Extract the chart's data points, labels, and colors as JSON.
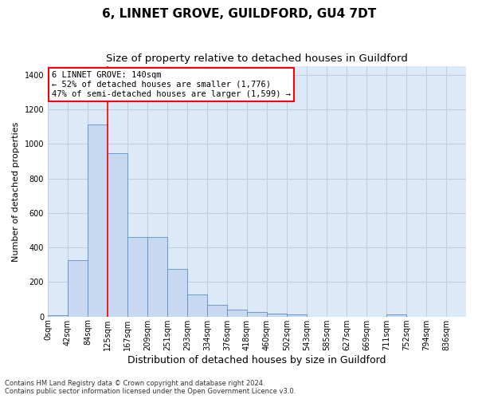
{
  "title": "6, LINNET GROVE, GUILDFORD, GU4 7DT",
  "subtitle": "Size of property relative to detached houses in Guildford",
  "xlabel": "Distribution of detached houses by size in Guildford",
  "ylabel": "Number of detached properties",
  "categories": [
    "0sqm",
    "42sqm",
    "84sqm",
    "125sqm",
    "167sqm",
    "209sqm",
    "251sqm",
    "293sqm",
    "334sqm",
    "376sqm",
    "418sqm",
    "460sqm",
    "502sqm",
    "543sqm",
    "585sqm",
    "627sqm",
    "669sqm",
    "711sqm",
    "752sqm",
    "794sqm",
    "836sqm"
  ],
  "bar_heights": [
    10,
    328,
    1112,
    948,
    460,
    460,
    275,
    130,
    68,
    38,
    25,
    18,
    14,
    0,
    0,
    0,
    0,
    14,
    0,
    0,
    0
  ],
  "bar_color": "#c6d9f0",
  "bar_edge_color": "#5b8ec4",
  "red_line_x": 3,
  "annotation_text_line1": "6 LINNET GROVE: 140sqm",
  "annotation_text_line2": "← 52% of detached houses are smaller (1,776)",
  "annotation_text_line3": "47% of semi-detached houses are larger (1,599) →",
  "ylim": [
    0,
    1450
  ],
  "yticks": [
    0,
    200,
    400,
    600,
    800,
    1000,
    1200,
    1400
  ],
  "footer_line1": "Contains HM Land Registry data © Crown copyright and database right 2024.",
  "footer_line2": "Contains public sector information licensed under the Open Government Licence v3.0.",
  "bg_color": "#ffffff",
  "plot_bg_color": "#dce9f8",
  "grid_color": "#c0cfe0",
  "title_fontsize": 11,
  "subtitle_fontsize": 9.5,
  "xlabel_fontsize": 9,
  "ylabel_fontsize": 8,
  "tick_fontsize": 7,
  "annot_fontsize": 7.5,
  "footer_fontsize": 6
}
